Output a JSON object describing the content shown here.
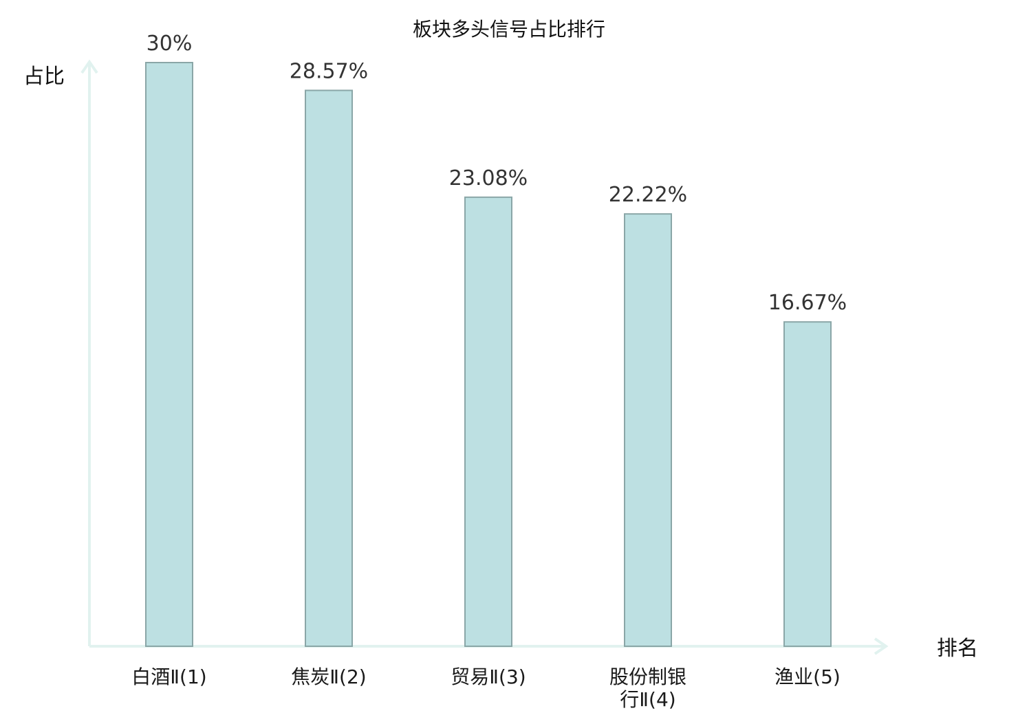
{
  "chart_data": {
    "type": "bar",
    "title": "板块多头信号占比排行",
    "xlabel": "排名",
    "ylabel": "占比",
    "ylim": [
      0,
      30
    ],
    "grid": false,
    "categories": [
      [
        "白酒Ⅱ(1)"
      ],
      [
        "焦炭Ⅱ(2)"
      ],
      [
        "贸易Ⅱ(3)"
      ],
      [
        "股份制银",
        "行Ⅱ(4)"
      ],
      [
        "渔业(5)"
      ]
    ],
    "values": [
      30,
      28.57,
      23.08,
      22.22,
      16.67
    ],
    "value_labels": [
      "30%",
      "28.57%",
      "23.08%",
      "22.22%",
      "16.67%"
    ],
    "highlight_index": 2
  },
  "colors": {
    "bar_fill": "#bde0e2",
    "bar_stroke": "#8aa6a7",
    "axis": "#e1f2ef",
    "highlight_text": "#e02020",
    "text": "#1a1a1a"
  }
}
